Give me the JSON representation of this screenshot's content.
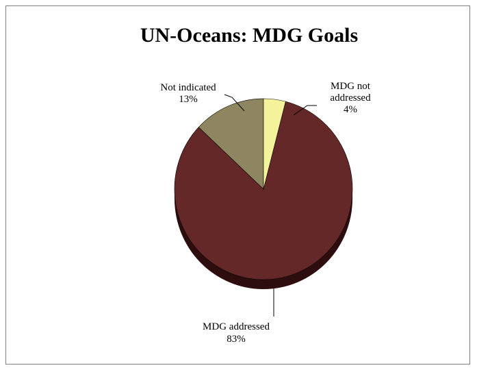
{
  "chart_data": {
    "type": "pie",
    "title": "UN-Oceans: MDG Goals",
    "slices": [
      {
        "name": "MDG addressed",
        "value": 83,
        "label": "MDG  addressed",
        "percent_label": "83%",
        "color": "#652828"
      },
      {
        "name": "Not indicated",
        "value": 13,
        "label": "Not indicated",
        "percent_label": "13%",
        "color": "#8d8660"
      },
      {
        "name": "MDG not addressed",
        "value": 4,
        "label": "MDG  not addressed",
        "label_lines": [
          "MDG  not",
          "addressed"
        ],
        "percent_label": "4%",
        "color": "#f4f39b"
      }
    ],
    "legend": false,
    "style": "3d-pie"
  }
}
